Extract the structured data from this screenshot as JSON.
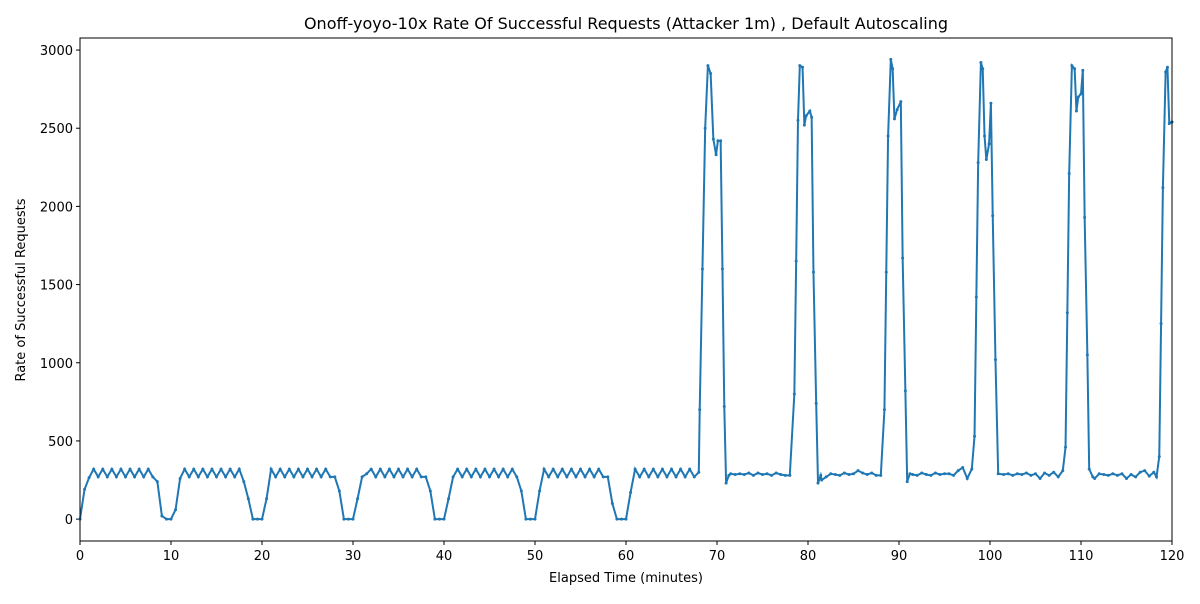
{
  "chart_data": {
    "type": "line",
    "title": "Onoff-yoyo-10x Rate Of Successful Requests (Attacker 1m) , Default Autoscaling",
    "x_label": "Elapsed Time (minutes)",
    "y_label": "Rate of Successful Requests",
    "xlim": [
      0,
      120
    ],
    "ylim": [
      -140,
      3077
    ],
    "xticks": [
      0,
      10,
      20,
      30,
      40,
      50,
      60,
      70,
      80,
      90,
      100,
      110,
      120
    ],
    "yticks": [
      0,
      500,
      1000,
      1500,
      2000,
      2500,
      3000
    ],
    "grid": false,
    "series": [
      {
        "color": "#1f77b4",
        "x": [
          0,
          0.5,
          1,
          1.5,
          2,
          2.5,
          3,
          3.5,
          4,
          4.5,
          5,
          5.5,
          6,
          6.5,
          7,
          7.5,
          8,
          8.5,
          9,
          9.5,
          10,
          10.5,
          11,
          11.5,
          12,
          12.5,
          13,
          13.5,
          14,
          14.5,
          15,
          15.5,
          16,
          16.5,
          17,
          17.5,
          18,
          18.5,
          19,
          19.5,
          20,
          20.5,
          21,
          21.5,
          22,
          22.5,
          23,
          23.5,
          24,
          24.5,
          25,
          25.5,
          26,
          26.5,
          27,
          27.5,
          28,
          28.5,
          29,
          29.5,
          30,
          30.5,
          31,
          31.5,
          32,
          32.5,
          33,
          33.5,
          34,
          34.5,
          35,
          35.5,
          36,
          36.5,
          37,
          37.5,
          38,
          38.5,
          39,
          39.5,
          40,
          40.5,
          41,
          41.5,
          42,
          42.5,
          43,
          43.5,
          44,
          44.5,
          45,
          45.5,
          46,
          46.5,
          47,
          47.5,
          48,
          48.5,
          49,
          49.5,
          50,
          50.5,
          51,
          51.5,
          52,
          52.5,
          53,
          53.5,
          54,
          54.5,
          55,
          55.5,
          56,
          56.5,
          57,
          57.5,
          58,
          58.5,
          59,
          59.5,
          60,
          60.5,
          61,
          61.5,
          62,
          62.5,
          63,
          63.5,
          64,
          64.5,
          65,
          65.5,
          66,
          66.5,
          67,
          67.5,
          68,
          68.1,
          68.4,
          68.7,
          69,
          69.3,
          69.6,
          69.9,
          70.1,
          70.4,
          70.6,
          70.8,
          71,
          71.3,
          71.5,
          72,
          72.5,
          73,
          73.5,
          74,
          74.5,
          75,
          75.5,
          76,
          76.5,
          77,
          77.5,
          78,
          78.5,
          78.7,
          78.9,
          79.1,
          79.4,
          79.6,
          79.8,
          80.2,
          80.4,
          80.6,
          80.9,
          81.1,
          81.4,
          81.5,
          82,
          82.5,
          83,
          83.5,
          84,
          84.5,
          85,
          85.5,
          86,
          86.5,
          87,
          87.5,
          88,
          88.4,
          88.6,
          88.8,
          89.1,
          89.3,
          89.5,
          89.8,
          90.2,
          90.4,
          90.7,
          90.9,
          91.2,
          91.5,
          92,
          92.5,
          93,
          93.5,
          94,
          94.5,
          95,
          95.5,
          96,
          96.5,
          97,
          97.5,
          98,
          98.3,
          98.5,
          98.7,
          99,
          99.2,
          99.4,
          99.6,
          99.9,
          100.1,
          100.3,
          100.6,
          100.9,
          101.5,
          102,
          102.5,
          103,
          103.5,
          104,
          104.5,
          105,
          105.5,
          106,
          106.5,
          107,
          107.5,
          108,
          108.3,
          108.5,
          108.7,
          109,
          109.3,
          109.5,
          109.7,
          110,
          110.2,
          110.4,
          110.7,
          110.9,
          111.3,
          111.5,
          112,
          112.5,
          113,
          113.5,
          114,
          114.5,
          115,
          115.5,
          116,
          116.5,
          117,
          117.5,
          118,
          118.3,
          118.6,
          118.8,
          119,
          119.3,
          119.5,
          119.7,
          120
        ],
        "values": [
          0,
          190,
          265,
          320,
          270,
          320,
          270,
          320,
          270,
          320,
          270,
          320,
          270,
          320,
          270,
          320,
          270,
          240,
          20,
          0,
          0,
          60,
          260,
          320,
          270,
          320,
          270,
          320,
          270,
          320,
          270,
          320,
          270,
          320,
          270,
          320,
          240,
          130,
          0,
          0,
          0,
          130,
          320,
          270,
          320,
          270,
          320,
          270,
          320,
          270,
          320,
          270,
          320,
          270,
          320,
          270,
          270,
          180,
          0,
          0,
          0,
          130,
          270,
          290,
          320,
          270,
          320,
          270,
          320,
          270,
          320,
          270,
          320,
          270,
          320,
          270,
          270,
          180,
          0,
          0,
          0,
          130,
          270,
          320,
          270,
          320,
          270,
          320,
          270,
          320,
          270,
          320,
          270,
          320,
          270,
          320,
          270,
          180,
          0,
          0,
          0,
          180,
          320,
          270,
          320,
          270,
          320,
          270,
          320,
          270,
          320,
          270,
          320,
          270,
          320,
          270,
          270,
          100,
          0,
          0,
          0,
          170,
          320,
          270,
          320,
          270,
          320,
          270,
          320,
          270,
          320,
          270,
          320,
          270,
          320,
          270,
          300,
          700,
          1600,
          2500,
          2900,
          2850,
          2430,
          2330,
          2420,
          2420,
          1600,
          720,
          230,
          280,
          290,
          285,
          290,
          285,
          295,
          280,
          295,
          285,
          290,
          280,
          295,
          285,
          280,
          280,
          800,
          1650,
          2550,
          2900,
          2890,
          2520,
          2580,
          2610,
          2570,
          1580,
          740,
          230,
          280,
          250,
          270,
          290,
          285,
          280,
          295,
          285,
          290,
          310,
          295,
          285,
          295,
          280,
          280,
          700,
          1580,
          2450,
          2940,
          2880,
          2560,
          2620,
          2670,
          1670,
          820,
          240,
          290,
          285,
          280,
          295,
          285,
          280,
          295,
          285,
          290,
          290,
          280,
          310,
          330,
          260,
          320,
          530,
          1420,
          2280,
          2920,
          2880,
          2450,
          2300,
          2400,
          2660,
          1940,
          1020,
          290,
          285,
          290,
          280,
          290,
          285,
          295,
          280,
          290,
          260,
          295,
          280,
          300,
          270,
          310,
          460,
          1320,
          2210,
          2900,
          2880,
          2610,
          2700,
          2720,
          2870,
          1930,
          1050,
          320,
          270,
          260,
          290,
          285,
          280,
          290,
          280,
          290,
          260,
          285,
          270,
          300,
          310,
          275,
          300,
          270,
          400,
          1250,
          2120,
          2860,
          2890,
          2530,
          2540
        ]
      }
    ]
  }
}
